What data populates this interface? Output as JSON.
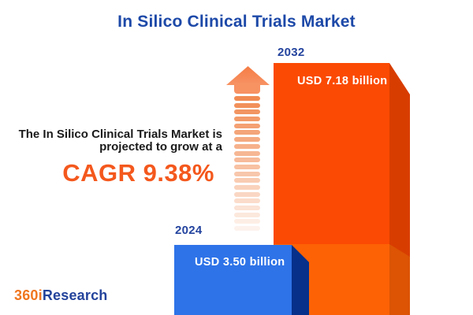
{
  "title": "In Silico Clinical Trials Market",
  "description": {
    "line1": "The In Silico Clinical Trials Market is",
    "line2": "projected to grow at a",
    "cagr_label": "CAGR 9.38%"
  },
  "chart_data": {
    "type": "bar",
    "title": "In Silico Clinical Trials Market",
    "unit": "USD billion",
    "categories": [
      "2024",
      "2032"
    ],
    "values": [
      3.5,
      7.18
    ],
    "cagr_percent": 9.38,
    "legend_position": "none",
    "axes_visible": false,
    "bars": [
      {
        "year": "2024",
        "value": 3.5,
        "label": "USD 3.50 billion",
        "face_color": "#2E73E8",
        "side_color": "#06308A"
      },
      {
        "year": "2032",
        "value": 7.18,
        "label": "USD 7.18 billion",
        "face_color": "#FB4A03",
        "side_color": "#D83D00"
      }
    ]
  },
  "icons": {
    "growth_arrow": "dashed-up-arrow"
  },
  "logo": {
    "prefix": "360i",
    "suffix": "Research"
  },
  "colors": {
    "title_blue": "#1D49A8",
    "year_label_blue": "#24449E",
    "cagr_orange": "#F4581D",
    "body_text_dark": "#1A1A1A",
    "orange_front_top": "#FB4A03",
    "orange_front_bottom": "#FD6205",
    "orange_side_top": "#D83D00",
    "orange_side_bottom": "#DC5404",
    "blue_front": "#2E73E8",
    "blue_side": "#06308A",
    "arrow_orange": "#F18A52",
    "logo_orange": "#F0761F",
    "logo_navy": "#23439B"
  }
}
